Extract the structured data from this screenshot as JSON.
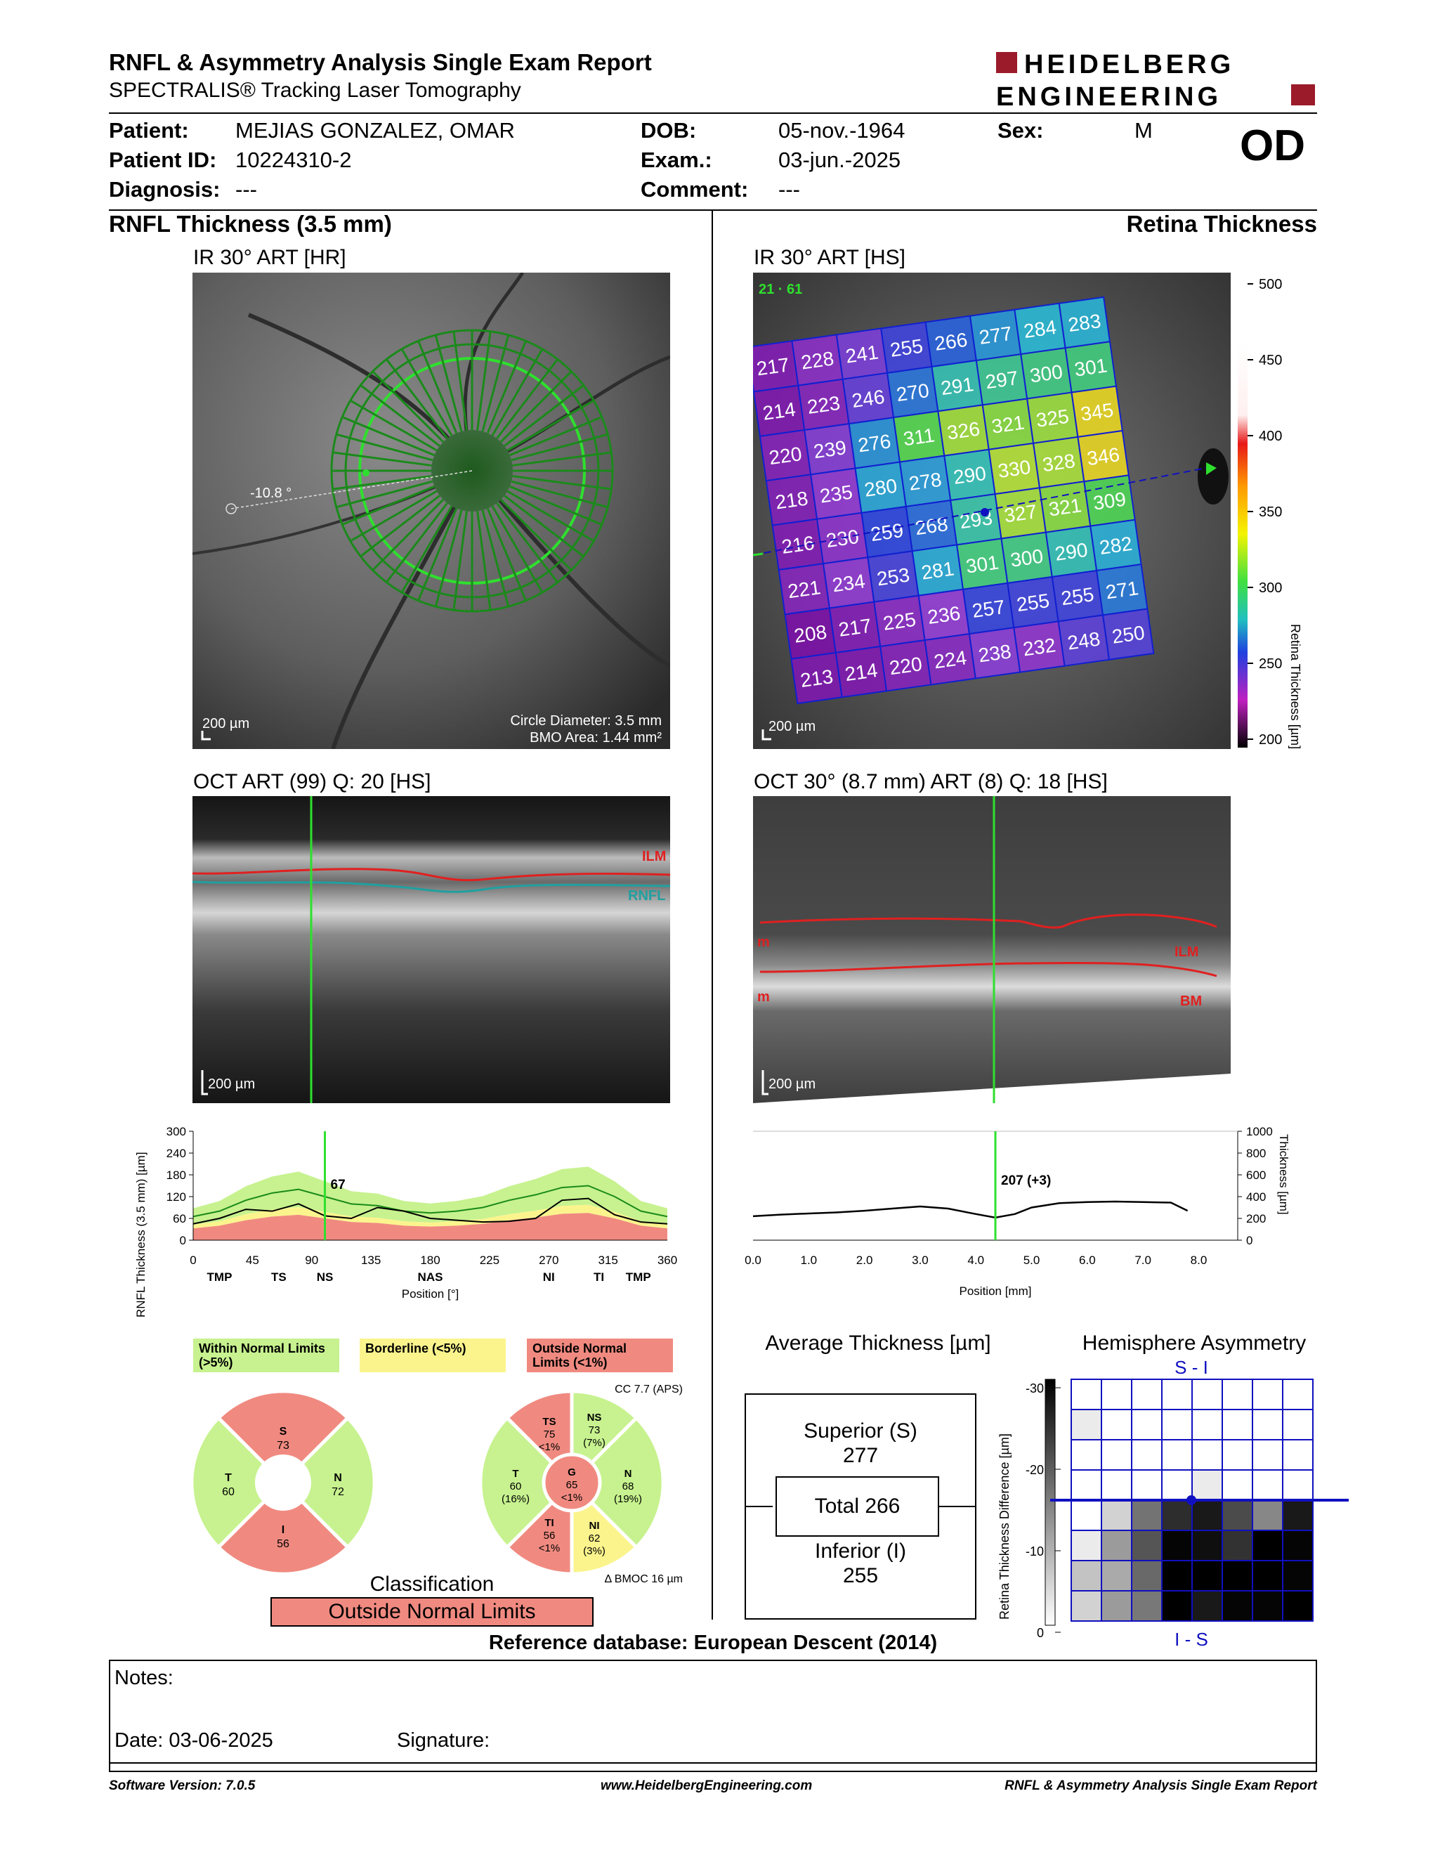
{
  "header": {
    "title": "RNFL & Asymmetry Analysis Single Exam Report",
    "subtitle": "SPECTRALIS® Tracking Laser Tomography",
    "logo_line1": "HEIDELBERG",
    "logo_line2": "ENGINEERING",
    "eye": "OD"
  },
  "patient": {
    "patient_label": "Patient:",
    "patient_value": "MEJIAS GONZALEZ, OMAR",
    "id_label": "Patient ID:",
    "id_value": "10224310-2",
    "diag_label": "Diagnosis:",
    "diag_value": "---",
    "dob_label": "DOB:",
    "dob_value": "05-nov.-1964",
    "exam_label": "Exam.:",
    "exam_value": "03-jun.-2025",
    "comment_label": "Comment:",
    "comment_value": "---",
    "sex_label": "Sex:",
    "sex_value": "M"
  },
  "left": {
    "section_title": "RNFL Thickness (3.5 mm)",
    "ir_label": "IR 30° ART [HR]",
    "ir_scale": "200 µm",
    "angle": "-10.8 °",
    "circle_diameter": "Circle Diameter: 3.5 mm",
    "bmo_area": "BMO Area: 1.44 mm²",
    "oct_label": "OCT ART (99) Q: 20 [HS]",
    "oct_scale": "200 µm",
    "ilm": "ILM",
    "rnfl": "RNFL"
  },
  "right": {
    "section_title": "Retina Thickness",
    "ir_label": "IR 30° ART [HS]",
    "ir_scale": "200 µm",
    "grid_corner": "21 · 61",
    "colorbar_title": "Retina Thickness [µm]",
    "colorbar_ticks": [
      "500",
      "450",
      "400",
      "350",
      "300",
      "250",
      "200"
    ],
    "oct_label": "OCT 30° (8.7 mm) ART (8) Q: 18 [HS]",
    "oct_scale": "200 µm",
    "ilm": "ILM",
    "bm": "BM",
    "m_label": "m"
  },
  "grid_values": [
    [
      217,
      228,
      241,
      255,
      266,
      277,
      284,
      283
    ],
    [
      214,
      223,
      246,
      270,
      291,
      297,
      300,
      301
    ],
    [
      220,
      239,
      276,
      311,
      326,
      321,
      325,
      345
    ],
    [
      218,
      235,
      280,
      278,
      290,
      330,
      328,
      346
    ],
    [
      216,
      230,
      259,
      268,
      293,
      327,
      321,
      309
    ],
    [
      221,
      234,
      253,
      281,
      301,
      300,
      290,
      282
    ],
    [
      208,
      217,
      225,
      236,
      257,
      255,
      255,
      271
    ],
    [
      213,
      214,
      220,
      224,
      238,
      232,
      248,
      250
    ]
  ],
  "chart_data": [
    {
      "type": "area",
      "ylabel": "RNFL Thickness (3.5 mm) [µm]",
      "xlabel": "Position [°]",
      "x_ticks": [
        "0",
        "45",
        "90",
        "135",
        "180",
        "225",
        "270",
        "315",
        "360"
      ],
      "y_ticks": [
        "300",
        "240",
        "180",
        "120",
        "60",
        "0"
      ],
      "sector_labels": [
        "TMP",
        "TS",
        "NS",
        "NAS",
        "NI",
        "TI",
        "TMP"
      ],
      "marker_value": "67",
      "marker_x": 100,
      "xlim": [
        0,
        360
      ],
      "ylim": [
        0,
        300
      ],
      "x": [
        0,
        20,
        40,
        60,
        80,
        100,
        120,
        140,
        160,
        180,
        200,
        220,
        240,
        260,
        280,
        300,
        320,
        340,
        360
      ],
      "series": [
        {
          "name": "",
          "values": [
            45,
            60,
            85,
            80,
            100,
            67,
            60,
            90,
            80,
            60,
            55,
            50,
            52,
            60,
            110,
            115,
            70,
            50,
            45
          ]
        }
      ],
      "normal_mean": [
        65,
        80,
        110,
        130,
        140,
        120,
        100,
        95,
        80,
        75,
        80,
        90,
        110,
        125,
        145,
        150,
        120,
        80,
        65
      ]
    },
    {
      "type": "line",
      "ylabel": "Thickness [µm]",
      "xlabel": "Position [mm]",
      "x_ticks": [
        "0.0",
        "1.0",
        "2.0",
        "3.0",
        "4.0",
        "5.0",
        "6.0",
        "7.0",
        "8.0"
      ],
      "y_ticks": [
        "1000",
        "800",
        "600",
        "400",
        "200",
        "0"
      ],
      "marker_value": "207 (+3)",
      "marker_x": 4.35,
      "xlim": [
        0,
        8.7
      ],
      "ylim": [
        0,
        1000
      ],
      "x": [
        0.0,
        0.5,
        1.0,
        1.5,
        2.0,
        2.5,
        3.0,
        3.5,
        4.0,
        4.35,
        4.7,
        5.0,
        5.5,
        6.0,
        6.5,
        7.0,
        7.5,
        7.8
      ],
      "series": [
        {
          "name": "",
          "values": [
            220,
            235,
            245,
            255,
            270,
            290,
            310,
            290,
            240,
            207,
            240,
            300,
            340,
            350,
            355,
            350,
            345,
            270
          ]
        }
      ]
    }
  ],
  "classification": {
    "legend_within": "Within Normal Limits (>5%)",
    "legend_border": "Borderline (<5%)",
    "legend_outside": "Outside Normal Limits (<1%)",
    "cc_label": "CC 7.7 (APS)",
    "quad": {
      "S": "73",
      "T": "60",
      "N": "72",
      "I": "56"
    },
    "sectors": {
      "TS": {
        "v": "75",
        "p": "<1%"
      },
      "NS": {
        "v": "73",
        "p": "(7%)"
      },
      "T": {
        "v": "60",
        "p": "(16%)"
      },
      "G": {
        "v": "65",
        "p": "<1%"
      },
      "N": {
        "v": "68",
        "p": "(19%)"
      },
      "TI": {
        "v": "56",
        "p": "<1%"
      },
      "NI": {
        "v": "62",
        "p": "(3%)"
      }
    },
    "bmoc": "Δ BMOC 16 µm",
    "title": "Classification",
    "result": "Outside Normal Limits",
    "colors": {
      "green": "#c7f28f",
      "yellow": "#fbf48d",
      "red": "#f08a80"
    }
  },
  "average": {
    "title": "Average Thickness [µm]",
    "superior_label": "Superior (S)",
    "superior_value": "277",
    "total": "Total 266",
    "inferior_label": "Inferior (I)",
    "inferior_value": "255"
  },
  "asymmetry": {
    "title": "Hemisphere Asymmetry",
    "top_label": "S - I",
    "bottom_label": "I - S",
    "axis_label": "Retina Thickness Difference [µm]",
    "ticks": [
      "-30",
      "-20",
      "-10",
      "0"
    ],
    "top_grays": [
      [
        0,
        0,
        0,
        0,
        0,
        0,
        0,
        0
      ],
      [
        20,
        0,
        0,
        0,
        0,
        0,
        0,
        0
      ],
      [
        0,
        0,
        0,
        0,
        0,
        0,
        0,
        0
      ],
      [
        0,
        0,
        0,
        0,
        20,
        0,
        0,
        0
      ]
    ],
    "bottom_grays": [
      [
        0,
        45,
        140,
        210,
        230,
        180,
        120,
        230
      ],
      [
        20,
        100,
        170,
        250,
        240,
        205,
        255,
        250
      ],
      [
        60,
        85,
        150,
        255,
        255,
        255,
        255,
        250
      ],
      [
        45,
        100,
        135,
        255,
        230,
        250,
        250,
        255
      ]
    ]
  },
  "reference_db": "Reference database: European Descent (2014)",
  "notes": {
    "notes_label": "Notes:",
    "date_label": "Date: 03-06-2025",
    "signature_label": "Signature:"
  },
  "footer": {
    "software": "Software Version: 7.0.5",
    "url": "www.HeidelbergEngineering.com",
    "report": "RNFL & Asymmetry Analysis Single Exam Report"
  }
}
